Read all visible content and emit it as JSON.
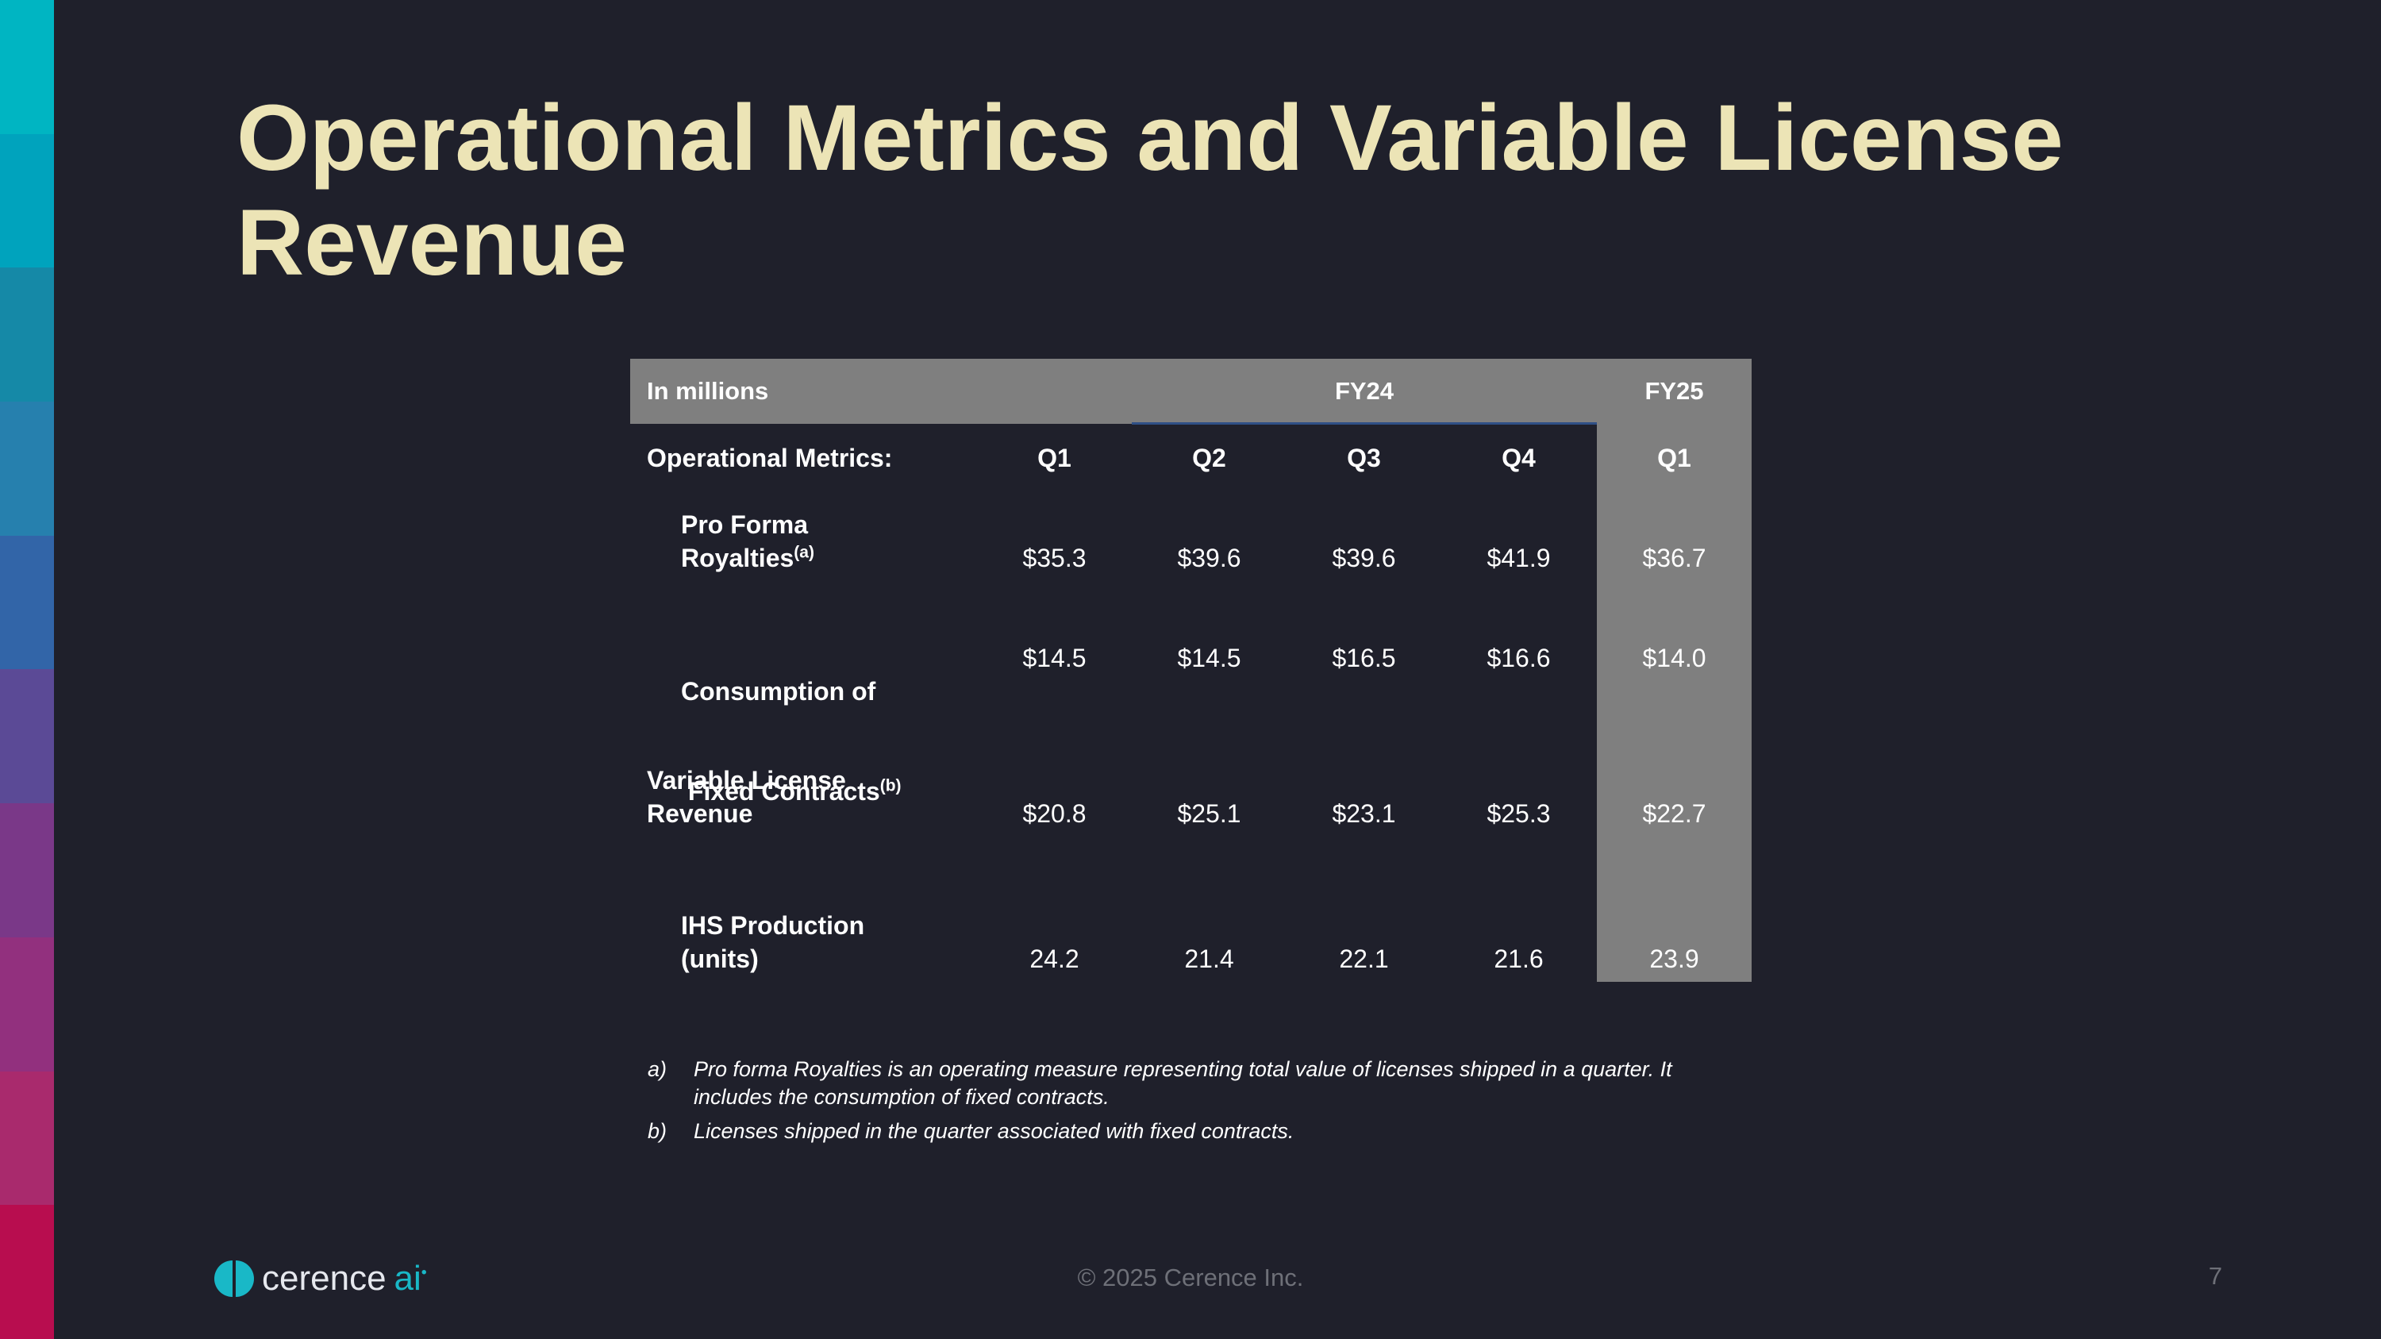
{
  "colors": {
    "background": "#1f202b",
    "title": "#ece4b6",
    "table_header": "#7f7f7f",
    "fy25_column": "#7f7f7f",
    "accent_teal": "#19b8c7",
    "color_bar": [
      "#00b5c2",
      "#00a3bd",
      "#1589a7",
      "#2680ae",
      "#3265a8",
      "#5b4a96",
      "#7a3888",
      "#92307e",
      "#a92a6d",
      "#b80d4f"
    ]
  },
  "title": "Operational Metrics and Variable License Revenue",
  "table": {
    "unit_label": "In millions",
    "group_fy24": "FY24",
    "group_fy25": "FY25",
    "metrics_label": "Operational Metrics:",
    "quarters": [
      "Q1",
      "Q2",
      "Q3",
      "Q4",
      "Q1"
    ],
    "rows": [
      {
        "label_line1": "Pro Forma",
        "label_line2": "Royalties",
        "marker": "(a)",
        "values": [
          "$35.3",
          "$39.6",
          "$39.6",
          "$41.9",
          "$36.7"
        ]
      },
      {
        "label_line1": "Consumption of",
        "label_line2": " Fixed Contracts",
        "marker": "(b)",
        "values": [
          "$14.5",
          "$14.5",
          "$16.5",
          "$16.6",
          "$14.0"
        ]
      },
      {
        "label_line1": "Variable License",
        "label_line2": "Revenue",
        "marker": "",
        "values": [
          "$20.8",
          "$25.1",
          "$23.1",
          "$25.3",
          "$22.7"
        ]
      },
      {
        "label_line1": "IHS Production",
        "label_line2": "(units)",
        "marker": "",
        "values": [
          "24.2",
          "21.4",
          "22.1",
          "21.6",
          "23.9"
        ]
      }
    ]
  },
  "footnotes": [
    {
      "mark": "a)",
      "text": "Pro forma Royalties is an operating measure representing total value of licenses shipped in a quarter. It includes the consumption of fixed contracts."
    },
    {
      "mark": "b)",
      "text": "Licenses shipped in the quarter associated with fixed contracts."
    }
  ],
  "logo": {
    "text": "cerence",
    "suffix": "ai"
  },
  "copyright": "© 2025 Cerence Inc.",
  "page_number": "7"
}
